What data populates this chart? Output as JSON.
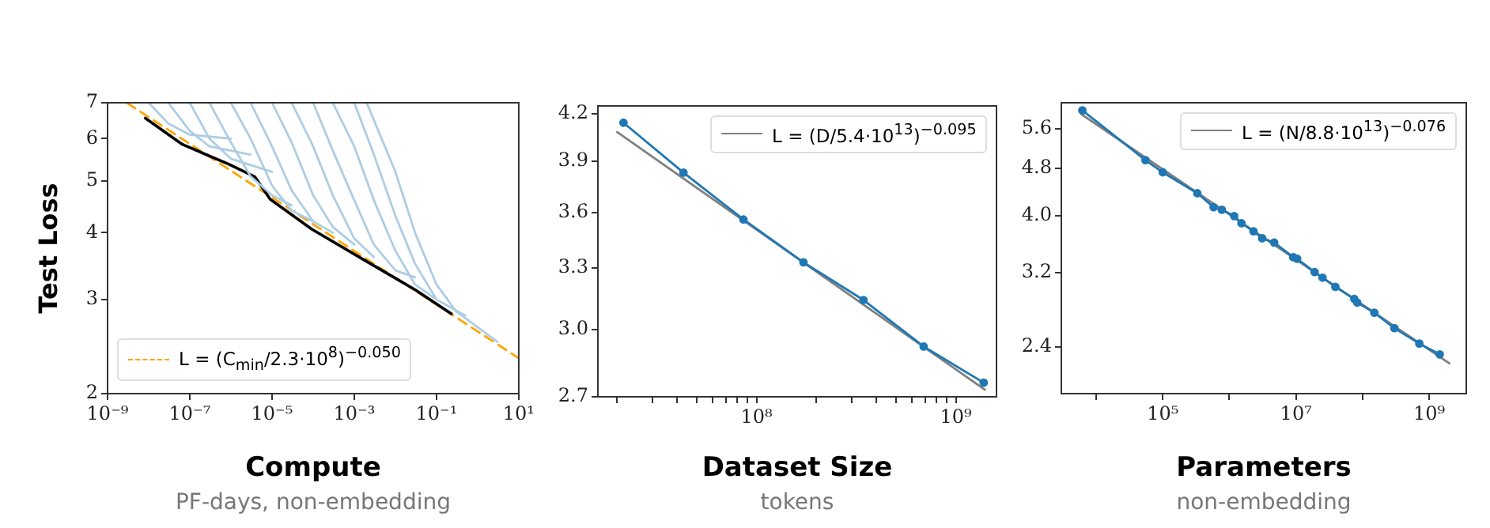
{
  "chart_data": [
    {
      "type": "line",
      "xlabel": "Compute",
      "subtitle": "PF-days, non-embedding",
      "ylabel": "Test Loss",
      "log": "xy",
      "legend": "bottom left",
      "xlim": [
        1e-09,
        10
      ],
      "xticks": [
        {
          "value": 1e-09,
          "label": "10⁻⁹"
        },
        {
          "value": 1e-07,
          "label": "10⁻⁷"
        },
        {
          "value": 1e-05,
          "label": "10⁻⁵"
        },
        {
          "value": 0.001,
          "label": "10⁻³"
        },
        {
          "value": 0.1,
          "label": "10⁻¹"
        },
        {
          "value": 10,
          "label": "10¹"
        }
      ],
      "ylim": [
        2,
        7
      ],
      "yticks": [
        2,
        3,
        4,
        5,
        6,
        7
      ],
      "series": [
        {
          "color": "#aecde3",
          "x": [
            1e-08,
            3e-08,
            1e-07,
            1e-06
          ],
          "values": [
            7,
            6.4,
            6.1,
            6.0
          ]
        },
        {
          "color": "#aecde3",
          "x": [
            3e-08,
            1e-07,
            3e-07,
            3e-06
          ],
          "values": [
            7,
            6.2,
            5.8,
            5.6
          ]
        },
        {
          "color": "#aecde3",
          "x": [
            1e-07,
            3e-07,
            1e-06,
            1e-05
          ],
          "values": [
            7,
            6.0,
            5.5,
            5.2
          ]
        },
        {
          "color": "#aecde3",
          "x": [
            3e-07,
            1e-06,
            3e-06,
            1e-05,
            3e-05
          ],
          "values": [
            7,
            5.9,
            5.1,
            4.7,
            4.5
          ]
        },
        {
          "color": "#aecde3",
          "x": [
            1e-06,
            3e-06,
            1e-05,
            3e-05,
            0.0001
          ],
          "values": [
            7,
            6.0,
            4.9,
            4.4,
            4.2
          ]
        },
        {
          "color": "#aecde3",
          "x": [
            3e-06,
            1e-05,
            3e-05,
            0.0001,
            0.0003
          ],
          "values": [
            7,
            5.8,
            4.8,
            4.2,
            4.0
          ]
        },
        {
          "color": "#aecde3",
          "x": [
            1e-05,
            3e-05,
            0.0001,
            0.0003,
            0.001
          ],
          "values": [
            7,
            5.9,
            4.7,
            4.1,
            3.8
          ]
        },
        {
          "color": "#aecde3",
          "x": [
            3e-05,
            0.0001,
            0.0003,
            0.001,
            0.003
          ],
          "values": [
            7,
            5.8,
            4.7,
            3.9,
            3.6
          ]
        },
        {
          "color": "#aecde3",
          "x": [
            0.0001,
            0.0003,
            0.001,
            0.003,
            0.01,
            0.03
          ],
          "values": [
            7,
            5.7,
            4.6,
            3.8,
            3.4,
            3.3
          ]
        },
        {
          "color": "#aecde3",
          "x": [
            0.0003,
            0.001,
            0.003,
            0.01,
            0.03,
            0.1
          ],
          "values": [
            7,
            5.8,
            4.6,
            3.7,
            3.2,
            3.0
          ]
        },
        {
          "color": "#aecde3",
          "x": [
            0.001,
            0.003,
            0.01,
            0.03,
            0.1,
            0.5
          ],
          "values": [
            7,
            5.6,
            4.3,
            3.5,
            3.0,
            2.8
          ]
        },
        {
          "color": "#aecde3",
          "x": [
            0.002,
            0.01,
            0.03,
            0.1,
            0.3,
            3
          ],
          "values": [
            7,
            5.2,
            4.0,
            3.2,
            2.85,
            2.5
          ]
        },
        {
          "color": "#000000",
          "x": [
            8.3e-09,
            6.6e-08,
            9e-07,
            3.8e-06,
            9e-06,
            9.3e-05,
            0.0017,
            0.03,
            0.23
          ],
          "values": [
            6.55,
            5.85,
            5.37,
            5.09,
            4.62,
            4.06,
            3.56,
            3.13,
            2.82
          ]
        },
        {
          "name": "L = (C$_{min}$/2.3·10$^{8}$)$^{−0.050}$",
          "color": "#ffa500",
          "line_style": "dashed",
          "x": [
            3e-09,
            10
          ],
          "values": [
            6.99,
            2.33
          ]
        }
      ]
    },
    {
      "type": "line",
      "xlabel": "Dataset Size",
      "subtitle": "tokens",
      "log": "xy",
      "legend": "top right",
      "xlim": [
        16000000.0,
        1600000000.0
      ],
      "xticks": [
        {
          "value": 20000000.0,
          "label": null
        },
        {
          "value": 30000000.0,
          "label": null
        },
        {
          "value": 40000000.0,
          "label": null
        },
        {
          "value": 50000000.0,
          "label": null
        },
        {
          "value": 60000000.0,
          "label": null
        },
        {
          "value": 70000000.0,
          "label": null
        },
        {
          "value": 80000000.0,
          "label": null
        },
        {
          "value": 90000000.0,
          "label": null
        },
        {
          "value": 100000000.0,
          "label": "10⁸"
        },
        {
          "value": 200000000.0,
          "label": null
        },
        {
          "value": 300000000.0,
          "label": null
        },
        {
          "value": 400000000.0,
          "label": null
        },
        {
          "value": 500000000.0,
          "label": null
        },
        {
          "value": 600000000.0,
          "label": null
        },
        {
          "value": 700000000.0,
          "label": null
        },
        {
          "value": 800000000.0,
          "label": null
        },
        {
          "value": 900000000.0,
          "label": null
        },
        {
          "value": 1000000000.0,
          "label": "10⁹"
        }
      ],
      "ylim": [
        2.7,
        4.25
      ],
      "yticks": [
        2.7,
        {
          "value": 3,
          "label": "3.0"
        },
        3.3,
        3.6,
        3.9,
        4.2
      ],
      "series": [
        {
          "color": "#1f77b4",
          "marker": "circle",
          "x": [
            21500000.0,
            43000000.0,
            86000000.0,
            172000000.0,
            344000000.0,
            690000000.0,
            1380000000.0
          ],
          "values": [
            4.14,
            3.83,
            3.56,
            3.33,
            3.14,
            2.92,
            2.76
          ]
        },
        {
          "name": "L = (D/5.4·10$^{13}$)$^{−0.095}$",
          "color": "#808080",
          "x": [
            20000000.0,
            1400000000.0
          ],
          "values": [
            4.08,
            2.73
          ]
        }
      ]
    },
    {
      "type": "line",
      "xlabel": "Parameters",
      "subtitle": "non-embedding",
      "log": "xy",
      "legend": "top right",
      "xlim": [
        3000.0,
        3600000000.0
      ],
      "xticks": [
        {
          "value": 10000.0,
          "label": null
        },
        {
          "value": 100000.0,
          "label": "10⁵"
        },
        {
          "value": 1000000.0,
          "label": null
        },
        {
          "value": 10000000.0,
          "label": "10⁷"
        },
        {
          "value": 100000000.0,
          "label": null
        },
        {
          "value": 1000000000.0,
          "label": "10⁹"
        }
      ],
      "ylim": [
        2.0,
        6.2
      ],
      "yticks": [
        2.4,
        3.2,
        {
          "value": 4,
          "label": "4.0"
        },
        4.8,
        5.6
      ],
      "series": [
        {
          "color": "#1f77b4",
          "marker": "circle",
          "x": [
            6200.0,
            55000.0,
            100000.0,
            330000.0,
            580000.0,
            770000.0,
            1180000.0,
            1520000.0,
            2300000.0,
            3100000.0,
            4700000.0,
            9100000.0,
            10400000.0,
            19000000.0,
            25000000.0,
            39000000.0,
            75000000.0,
            83000000.0,
            150000000.0,
            300000000.0,
            710000000.0,
            1440000000.0
          ],
          "values": [
            6.02,
            4.96,
            4.73,
            4.36,
            4.13,
            4.09,
            3.99,
            3.88,
            3.76,
            3.66,
            3.6,
            3.4,
            3.38,
            3.21,
            3.14,
            3.03,
            2.89,
            2.85,
            2.74,
            2.58,
            2.43,
            2.33
          ]
        },
        {
          "name": "L = (N/8.8·10$^{13}$)$^{−0.076}$",
          "color": "#808080",
          "x": [
            6000.0,
            2000000000.0
          ],
          "values": [
            5.93,
            2.25
          ]
        }
      ]
    }
  ]
}
